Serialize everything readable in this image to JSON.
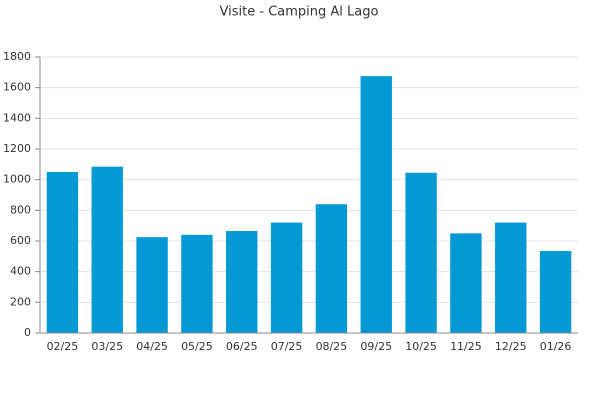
{
  "chart_data": {
    "type": "bar",
    "title": "Visite - Camping Al Lago",
    "categories": [
      "02/25",
      "03/25",
      "04/25",
      "05/25",
      "06/25",
      "07/25",
      "08/25",
      "09/25",
      "10/25",
      "11/25",
      "12/25",
      "01/26"
    ],
    "values": [
      1050,
      1085,
      625,
      640,
      665,
      720,
      840,
      1675,
      1045,
      650,
      720,
      535
    ],
    "color": "#0499d4",
    "ylim": [
      0,
      1800
    ],
    "yticks": [
      0,
      200,
      400,
      600,
      800,
      1000,
      1200,
      1400,
      1600,
      1800
    ],
    "grid": true
  }
}
